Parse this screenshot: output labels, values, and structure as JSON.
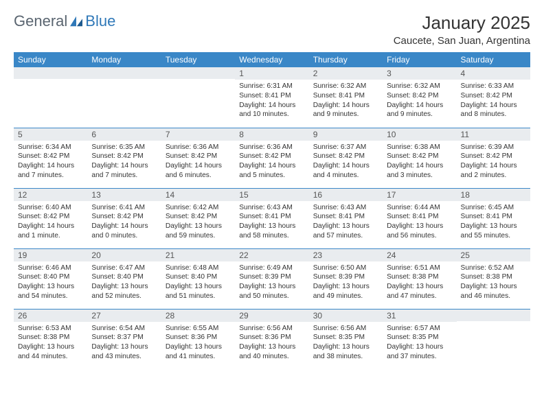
{
  "brand": {
    "general": "General",
    "blue": "Blue"
  },
  "colors": {
    "header_bg": "#3a87c7",
    "header_text": "#ffffff",
    "daynum_bg": "#e9ecef",
    "border": "#3a87c7",
    "body_text": "#333333",
    "logo_gray": "#5a6570",
    "logo_blue": "#2f78b8"
  },
  "title": "January 2025",
  "location": "Caucete, San Juan, Argentina",
  "weekdays": [
    "Sunday",
    "Monday",
    "Tuesday",
    "Wednesday",
    "Thursday",
    "Friday",
    "Saturday"
  ],
  "weeks": [
    [
      {
        "n": "",
        "lines": []
      },
      {
        "n": "",
        "lines": []
      },
      {
        "n": "",
        "lines": []
      },
      {
        "n": "1",
        "lines": [
          "Sunrise: 6:31 AM",
          "Sunset: 8:41 PM",
          "Daylight: 14 hours and 10 minutes."
        ]
      },
      {
        "n": "2",
        "lines": [
          "Sunrise: 6:32 AM",
          "Sunset: 8:41 PM",
          "Daylight: 14 hours and 9 minutes."
        ]
      },
      {
        "n": "3",
        "lines": [
          "Sunrise: 6:32 AM",
          "Sunset: 8:42 PM",
          "Daylight: 14 hours and 9 minutes."
        ]
      },
      {
        "n": "4",
        "lines": [
          "Sunrise: 6:33 AM",
          "Sunset: 8:42 PM",
          "Daylight: 14 hours and 8 minutes."
        ]
      }
    ],
    [
      {
        "n": "5",
        "lines": [
          "Sunrise: 6:34 AM",
          "Sunset: 8:42 PM",
          "Daylight: 14 hours and 7 minutes."
        ]
      },
      {
        "n": "6",
        "lines": [
          "Sunrise: 6:35 AM",
          "Sunset: 8:42 PM",
          "Daylight: 14 hours and 7 minutes."
        ]
      },
      {
        "n": "7",
        "lines": [
          "Sunrise: 6:36 AM",
          "Sunset: 8:42 PM",
          "Daylight: 14 hours and 6 minutes."
        ]
      },
      {
        "n": "8",
        "lines": [
          "Sunrise: 6:36 AM",
          "Sunset: 8:42 PM",
          "Daylight: 14 hours and 5 minutes."
        ]
      },
      {
        "n": "9",
        "lines": [
          "Sunrise: 6:37 AM",
          "Sunset: 8:42 PM",
          "Daylight: 14 hours and 4 minutes."
        ]
      },
      {
        "n": "10",
        "lines": [
          "Sunrise: 6:38 AM",
          "Sunset: 8:42 PM",
          "Daylight: 14 hours and 3 minutes."
        ]
      },
      {
        "n": "11",
        "lines": [
          "Sunrise: 6:39 AM",
          "Sunset: 8:42 PM",
          "Daylight: 14 hours and 2 minutes."
        ]
      }
    ],
    [
      {
        "n": "12",
        "lines": [
          "Sunrise: 6:40 AM",
          "Sunset: 8:42 PM",
          "Daylight: 14 hours and 1 minute."
        ]
      },
      {
        "n": "13",
        "lines": [
          "Sunrise: 6:41 AM",
          "Sunset: 8:42 PM",
          "Daylight: 14 hours and 0 minutes."
        ]
      },
      {
        "n": "14",
        "lines": [
          "Sunrise: 6:42 AM",
          "Sunset: 8:42 PM",
          "Daylight: 13 hours and 59 minutes."
        ]
      },
      {
        "n": "15",
        "lines": [
          "Sunrise: 6:43 AM",
          "Sunset: 8:41 PM",
          "Daylight: 13 hours and 58 minutes."
        ]
      },
      {
        "n": "16",
        "lines": [
          "Sunrise: 6:43 AM",
          "Sunset: 8:41 PM",
          "Daylight: 13 hours and 57 minutes."
        ]
      },
      {
        "n": "17",
        "lines": [
          "Sunrise: 6:44 AM",
          "Sunset: 8:41 PM",
          "Daylight: 13 hours and 56 minutes."
        ]
      },
      {
        "n": "18",
        "lines": [
          "Sunrise: 6:45 AM",
          "Sunset: 8:41 PM",
          "Daylight: 13 hours and 55 minutes."
        ]
      }
    ],
    [
      {
        "n": "19",
        "lines": [
          "Sunrise: 6:46 AM",
          "Sunset: 8:40 PM",
          "Daylight: 13 hours and 54 minutes."
        ]
      },
      {
        "n": "20",
        "lines": [
          "Sunrise: 6:47 AM",
          "Sunset: 8:40 PM",
          "Daylight: 13 hours and 52 minutes."
        ]
      },
      {
        "n": "21",
        "lines": [
          "Sunrise: 6:48 AM",
          "Sunset: 8:40 PM",
          "Daylight: 13 hours and 51 minutes."
        ]
      },
      {
        "n": "22",
        "lines": [
          "Sunrise: 6:49 AM",
          "Sunset: 8:39 PM",
          "Daylight: 13 hours and 50 minutes."
        ]
      },
      {
        "n": "23",
        "lines": [
          "Sunrise: 6:50 AM",
          "Sunset: 8:39 PM",
          "Daylight: 13 hours and 49 minutes."
        ]
      },
      {
        "n": "24",
        "lines": [
          "Sunrise: 6:51 AM",
          "Sunset: 8:38 PM",
          "Daylight: 13 hours and 47 minutes."
        ]
      },
      {
        "n": "25",
        "lines": [
          "Sunrise: 6:52 AM",
          "Sunset: 8:38 PM",
          "Daylight: 13 hours and 46 minutes."
        ]
      }
    ],
    [
      {
        "n": "26",
        "lines": [
          "Sunrise: 6:53 AM",
          "Sunset: 8:38 PM",
          "Daylight: 13 hours and 44 minutes."
        ]
      },
      {
        "n": "27",
        "lines": [
          "Sunrise: 6:54 AM",
          "Sunset: 8:37 PM",
          "Daylight: 13 hours and 43 minutes."
        ]
      },
      {
        "n": "28",
        "lines": [
          "Sunrise: 6:55 AM",
          "Sunset: 8:36 PM",
          "Daylight: 13 hours and 41 minutes."
        ]
      },
      {
        "n": "29",
        "lines": [
          "Sunrise: 6:56 AM",
          "Sunset: 8:36 PM",
          "Daylight: 13 hours and 40 minutes."
        ]
      },
      {
        "n": "30",
        "lines": [
          "Sunrise: 6:56 AM",
          "Sunset: 8:35 PM",
          "Daylight: 13 hours and 38 minutes."
        ]
      },
      {
        "n": "31",
        "lines": [
          "Sunrise: 6:57 AM",
          "Sunset: 8:35 PM",
          "Daylight: 13 hours and 37 minutes."
        ]
      },
      {
        "n": "",
        "lines": []
      }
    ]
  ]
}
